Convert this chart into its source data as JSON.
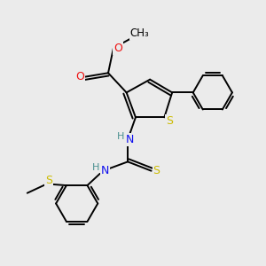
{
  "background_color": "#ebebeb",
  "atom_colors": {
    "C": "#000000",
    "N": "#1010ee",
    "O": "#ee1010",
    "S": "#ccbb00",
    "H": "#4a9090"
  },
  "figsize": [
    3.0,
    3.0
  ],
  "dpi": 100
}
